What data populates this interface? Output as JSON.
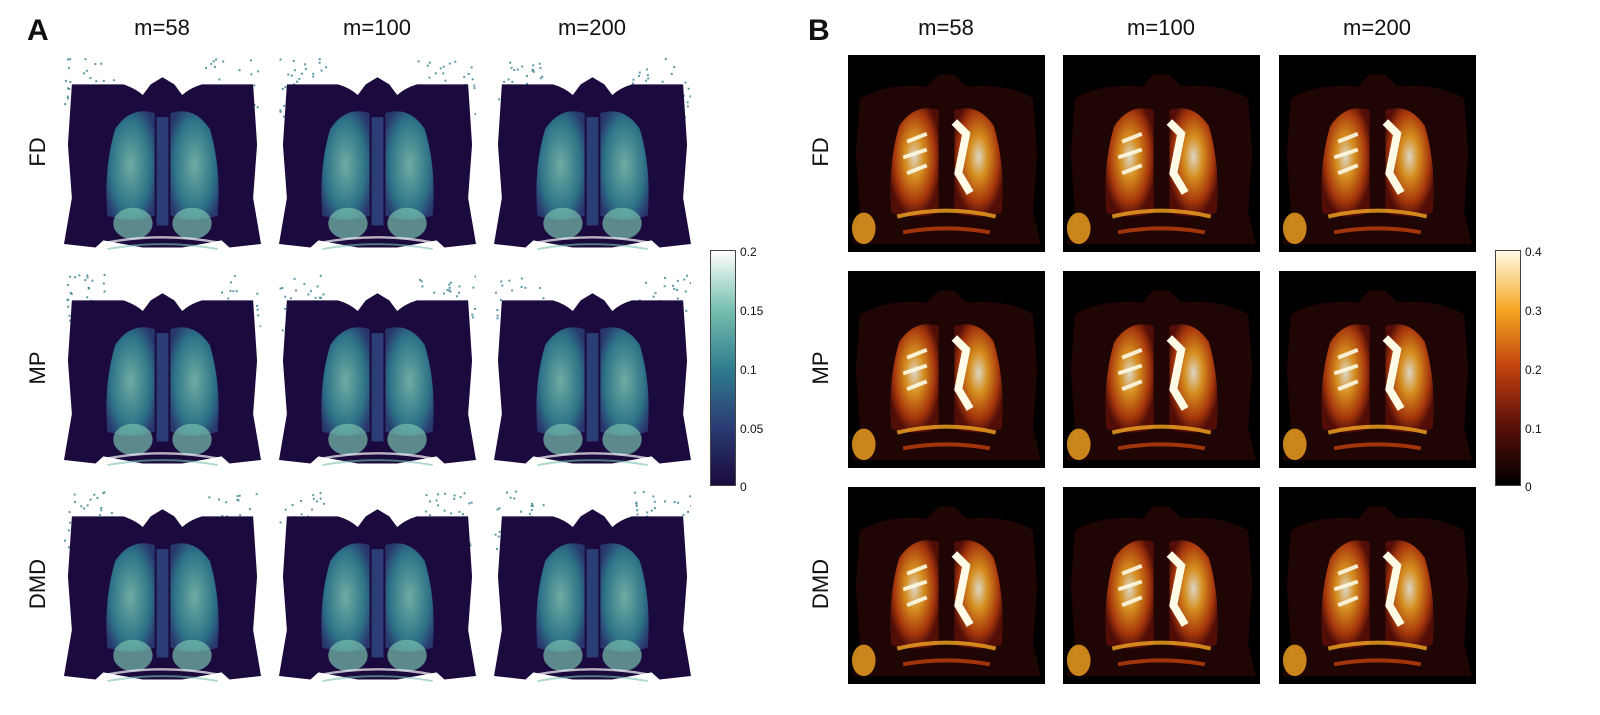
{
  "panels": [
    {
      "letter": "A",
      "columns": [
        "m=58",
        "m=100",
        "m=200"
      ],
      "rows": [
        "FD",
        "MP",
        "DMD"
      ],
      "colormap": "dark blue to teal to white",
      "colors": [
        "#1b0a3e",
        "#2a3d74",
        "#2f7d8f",
        "#76bfae",
        "#ffffff"
      ],
      "colorbar": {
        "ticks": [
          "0.2",
          "0.15",
          "0.1",
          "0.05",
          "0"
        ]
      }
    },
    {
      "letter": "B",
      "columns": [
        "m=58",
        "m=100",
        "m=200"
      ],
      "rows": [
        "FD",
        "MP",
        "DMD"
      ],
      "colormap": "black to red to yellow to white",
      "colors": [
        "#000000",
        "#5a0f08",
        "#c0410e",
        "#f5a623",
        "#fffbe6"
      ],
      "colorbar": {
        "ticks": [
          "0.4",
          "0.3",
          "0.2",
          "0.1",
          "0"
        ]
      }
    }
  ]
}
